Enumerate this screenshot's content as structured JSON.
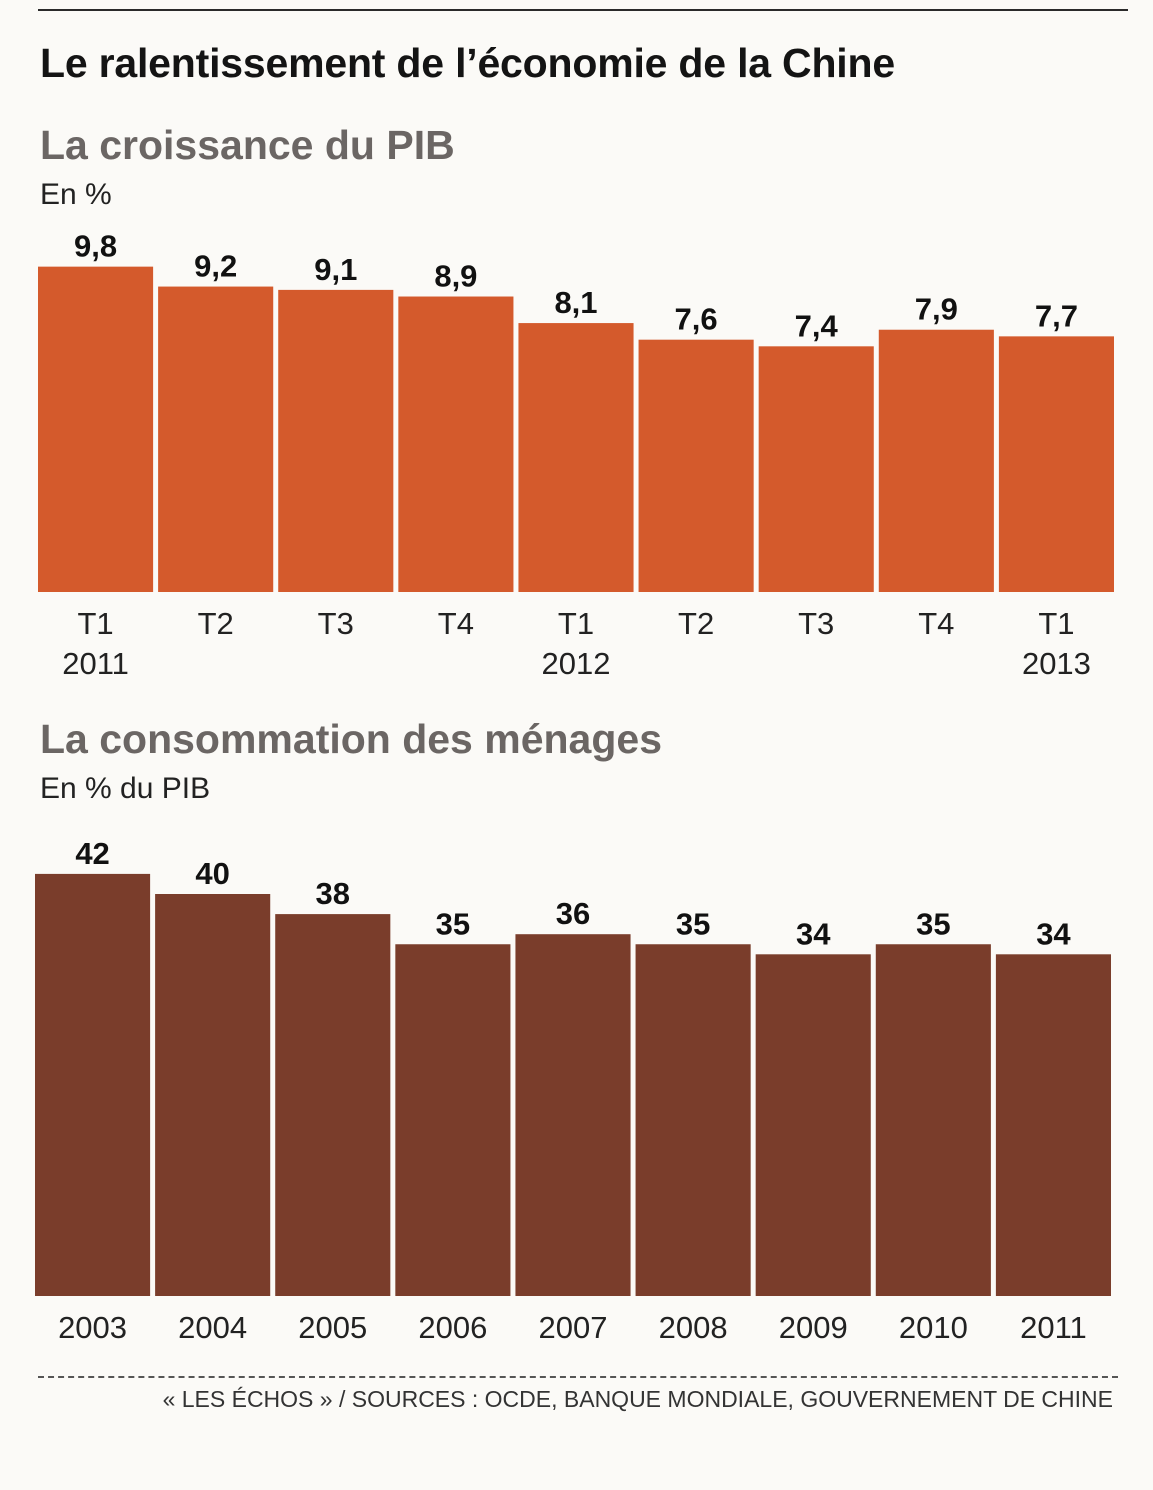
{
  "title": "Le ralentissement de l’économie de la Chine",
  "source": "« LES ÉCHOS » / SOURCES : OCDE, BANQUE MONDIALE, GOUVERNEMENT DE CHINE",
  "colors": {
    "pib": "#d45a2c",
    "conso": "#7a3d2b"
  },
  "chart_data": [
    {
      "type": "bar",
      "title": "La croissance du PIB",
      "ylabel": "En %",
      "categories": [
        "T1",
        "T2",
        "T3",
        "T4",
        "T1",
        "T2",
        "T3",
        "T4",
        "T1"
      ],
      "years": [
        "2011",
        "",
        "",
        "",
        "2012",
        "",
        "",
        "",
        "2013"
      ],
      "values": [
        9.8,
        9.2,
        9.1,
        8.9,
        8.1,
        7.6,
        7.4,
        7.9,
        7.7
      ],
      "value_labels": [
        "9,8",
        "9,2",
        "9,1",
        "8,9",
        "8,1",
        "7,6",
        "7,4",
        "7,9",
        "7,7"
      ],
      "grid": false
    },
    {
      "type": "bar",
      "title": "La consommation des ménages",
      "ylabel": "En % du PIB",
      "categories": [
        "2003",
        "2004",
        "2005",
        "2006",
        "2007",
        "2008",
        "2009",
        "2010",
        "2011"
      ],
      "values": [
        42,
        40,
        38,
        35,
        36,
        35,
        34,
        35,
        34
      ],
      "value_labels": [
        "42",
        "40",
        "38",
        "35",
        "36",
        "35",
        "34",
        "35",
        "34"
      ],
      "grid": false
    }
  ]
}
